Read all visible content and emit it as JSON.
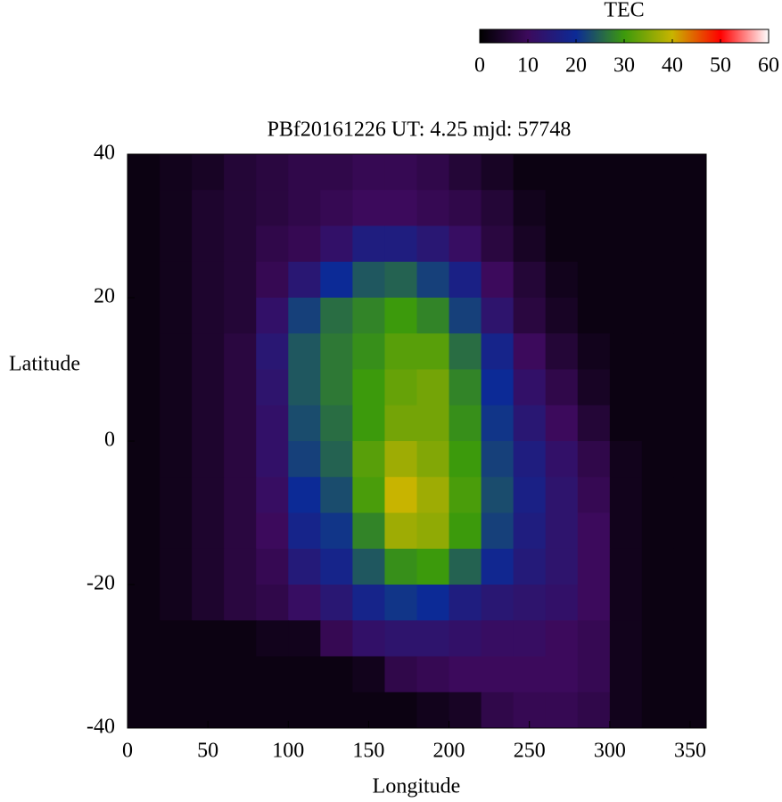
{
  "chart_data": {
    "type": "heatmap",
    "title": "PBf20161226  UT: 4.25  mjd: 57748",
    "xlabel": "Longitude",
    "ylabel": "Latitude",
    "colorbar_label": "TEC",
    "xlim": [
      0,
      360
    ],
    "xticks": [
      0,
      50,
      100,
      150,
      200,
      250,
      300,
      350
    ],
    "ylim": [
      -40,
      40
    ],
    "yticks": [
      -40,
      -20,
      0,
      20,
      40
    ],
    "zlim": [
      0,
      60
    ],
    "zticks": [
      0,
      10,
      20,
      30,
      40,
      50,
      60
    ],
    "colorscale": [
      "#000000",
      "#3c0a5c",
      "#0c2a96",
      "#3c9a0c",
      "#c8b400",
      "#ff0000",
      "#ffffff"
    ],
    "x": [
      10,
      30,
      50,
      70,
      90,
      110,
      130,
      150,
      170,
      190,
      210,
      230,
      250,
      270,
      290,
      310,
      330,
      350
    ],
    "y": [
      37.5,
      32.5,
      27.5,
      22.5,
      17.5,
      12.5,
      7.5,
      2.5,
      -2.5,
      -7.5,
      -12.5,
      -17.5,
      -22.5,
      -27.5,
      -32.5,
      -37.5
    ],
    "z": [
      [
        2,
        3,
        4,
        6,
        7,
        8,
        8,
        9,
        9,
        8,
        6,
        4,
        2,
        2,
        2,
        2,
        2,
        2
      ],
      [
        2,
        3,
        5,
        6,
        7,
        8,
        9,
        10,
        10,
        9,
        8,
        6,
        3,
        2,
        2,
        2,
        2,
        2
      ],
      [
        2,
        3,
        5,
        6,
        8,
        9,
        12,
        16,
        16,
        14,
        11,
        7,
        4,
        2,
        2,
        2,
        2,
        2
      ],
      [
        2,
        3,
        5,
        6,
        9,
        14,
        20,
        24,
        25,
        22,
        17,
        10,
        6,
        3,
        2,
        2,
        2,
        2
      ],
      [
        2,
        3,
        5,
        6,
        12,
        22,
        26,
        28,
        30,
        28,
        22,
        13,
        7,
        4,
        2,
        2,
        2,
        2
      ],
      [
        2,
        3,
        5,
        7,
        14,
        24,
        27,
        29,
        32,
        32,
        26,
        18,
        10,
        6,
        3,
        2,
        2,
        2
      ],
      [
        2,
        3,
        5,
        7,
        13,
        24,
        27,
        30,
        33,
        34,
        28,
        20,
        12,
        8,
        4,
        2,
        2,
        2
      ],
      [
        2,
        3,
        5,
        7,
        12,
        23,
        26,
        30,
        34,
        34,
        29,
        21,
        14,
        10,
        6,
        2,
        2,
        2
      ],
      [
        2,
        3,
        5,
        7,
        12,
        22,
        25,
        32,
        37,
        35,
        30,
        22,
        16,
        12,
        8,
        3,
        2,
        2
      ],
      [
        2,
        3,
        5,
        7,
        11,
        20,
        23,
        31,
        40,
        37,
        31,
        23,
        17,
        13,
        9,
        3,
        2,
        2
      ],
      [
        2,
        3,
        5,
        7,
        10,
        18,
        21,
        28,
        37,
        36,
        30,
        22,
        16,
        13,
        10,
        3,
        2,
        2
      ],
      [
        2,
        3,
        5,
        7,
        9,
        15,
        18,
        24,
        29,
        30,
        25,
        19,
        15,
        13,
        10,
        3,
        2,
        2
      ],
      [
        2,
        3,
        5,
        7,
        8,
        11,
        14,
        18,
        21,
        20,
        16,
        14,
        13,
        12,
        10,
        3,
        2,
        2
      ],
      [
        2,
        2,
        2,
        2,
        3,
        3,
        9,
        12,
        13,
        13,
        12,
        11,
        11,
        10,
        9,
        3,
        2,
        2
      ],
      [
        2,
        2,
        2,
        2,
        2,
        2,
        2,
        3,
        8,
        9,
        10,
        10,
        10,
        10,
        9,
        3,
        2,
        2
      ],
      [
        2,
        2,
        2,
        2,
        2,
        2,
        2,
        2,
        2,
        3,
        4,
        8,
        9,
        9,
        8,
        3,
        2,
        2
      ]
    ]
  }
}
